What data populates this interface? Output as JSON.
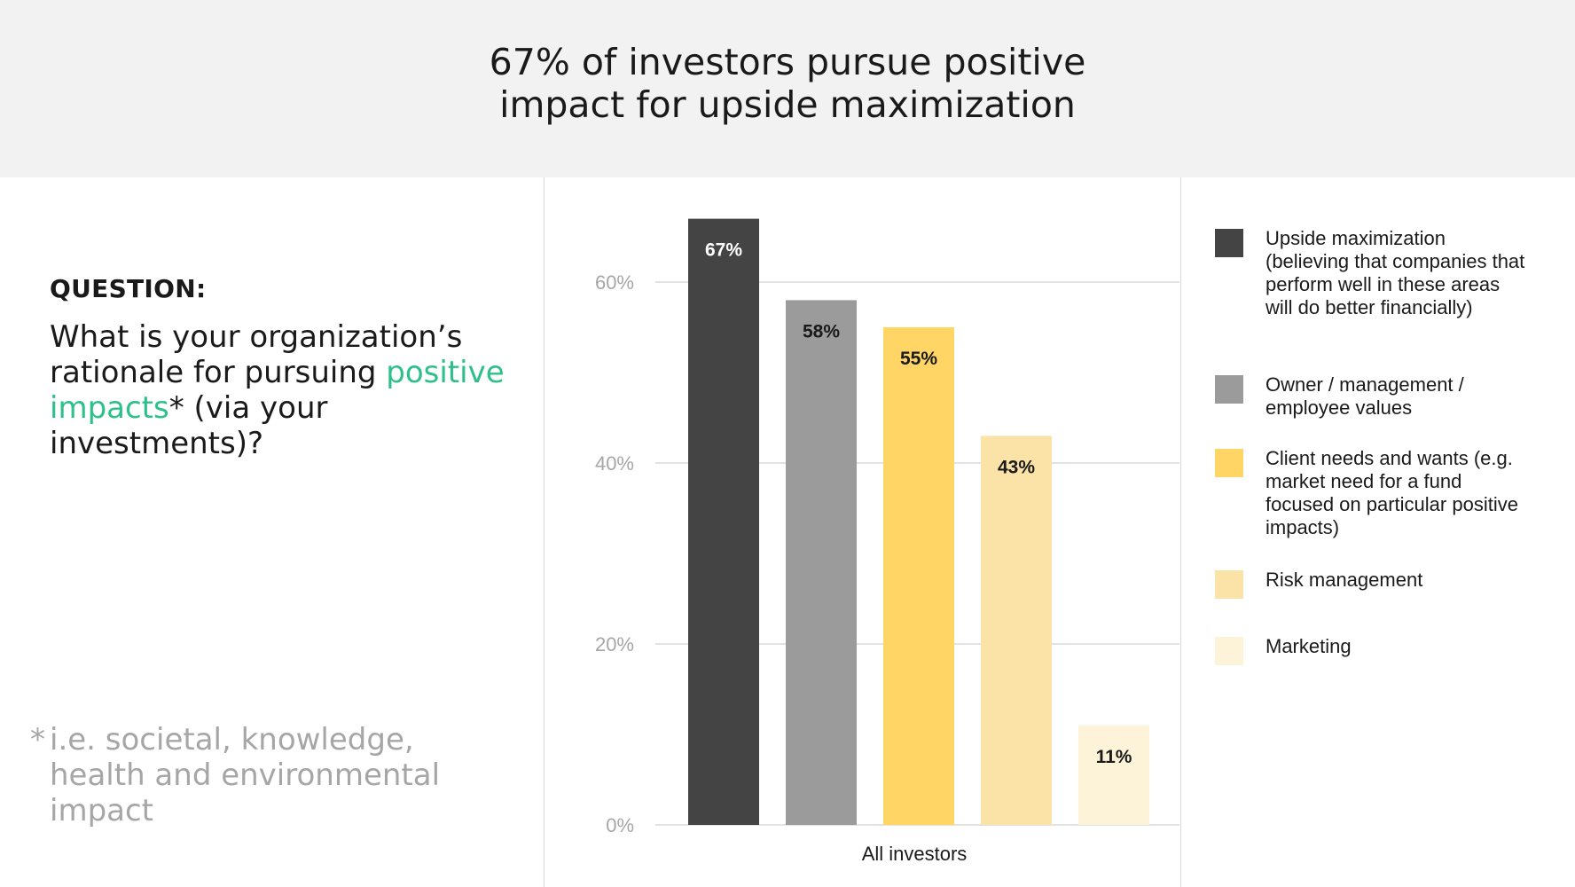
{
  "header": {
    "title_line1": "67% of investors pursue positive",
    "title_line2": "impact for upside maximization",
    "background": "#f2f2f2"
  },
  "question": {
    "label": "QUESTION:",
    "text_before": "What is your organization’s rationale for pursuing ",
    "text_accent": "positive impacts",
    "text_after": "* (via your investments)?",
    "accent_color": "#2ec08a"
  },
  "footnote": {
    "star": "*",
    "text": "i.e. societal, knowledge, health and environmental impact"
  },
  "chart_data": {
    "type": "bar",
    "categories": [
      "All investors"
    ],
    "series": [
      {
        "name": "Upside maximization (believing that companies that perform well in these areas will do better financially)",
        "values": [
          67
        ],
        "label": "67%",
        "color": "#444444",
        "label_color": "#ffffff"
      },
      {
        "name": "Owner / management / employee values",
        "values": [
          58
        ],
        "label": "58%",
        "color": "#9b9b9b",
        "label_color": "#1a1a1a"
      },
      {
        "name": "Client needs and wants (e.g. market need for a fund focused on particular positive impacts)",
        "values": [
          55
        ],
        "label": "55%",
        "color": "#ffd666",
        "label_color": "#1a1a1a"
      },
      {
        "name": "Risk management",
        "values": [
          43
        ],
        "label": "43%",
        "color": "#fbe3a8",
        "label_color": "#1a1a1a"
      },
      {
        "name": "Marketing",
        "values": [
          11
        ],
        "label": "11%",
        "color": "#fdf3d8",
        "label_color": "#1a1a1a"
      }
    ],
    "yticks": [
      "0%",
      "20%",
      "40%",
      "60%"
    ],
    "ytick_values": [
      0,
      20,
      40,
      60
    ],
    "ylim": [
      0,
      70
    ],
    "xlabel": "All investors",
    "grid": true,
    "legend_position": "right"
  },
  "legend": {
    "items": [
      {
        "label": "Upside maximization (believing that companies that perform well in these areas will do better financially)",
        "color": "#444444"
      },
      {
        "label": "Owner / management / employee values",
        "color": "#9b9b9b"
      },
      {
        "label": "Client needs and wants (e.g. market need for a fund focused on particular positive impacts)",
        "color": "#ffd666"
      },
      {
        "label": "Risk management",
        "color": "#fbe3a8"
      },
      {
        "label": "Marketing",
        "color": "#fdf3d8"
      }
    ]
  }
}
